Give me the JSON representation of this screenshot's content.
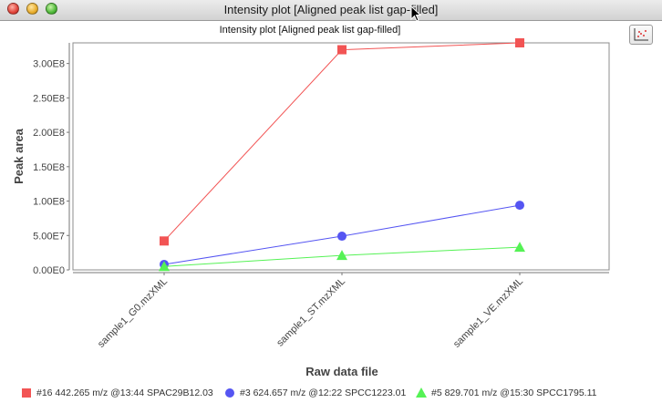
{
  "window": {
    "title": "Intensity plot [Aligned peak list gap-filled]"
  },
  "chart_data": {
    "type": "line",
    "title": "Intensity plot [Aligned peak list gap-filled]",
    "xlabel": "Raw data file",
    "ylabel": "Peak area",
    "categories": [
      "sample1_G0.mzXML",
      "sample1_ST.mzXML",
      "sample1_VE.mzXML"
    ],
    "ylim": [
      0,
      330000000
    ],
    "yticks": [
      0,
      50000000,
      100000000,
      150000000,
      200000000,
      250000000,
      300000000
    ],
    "ytick_labels": [
      "0.00E0",
      "5.00E7",
      "1.00E8",
      "1.50E8",
      "2.00E8",
      "2.50E8",
      "3.00E8"
    ],
    "grid": false,
    "legend_position": "bottom",
    "series": [
      {
        "name": "#16 442.265 m/z @13:44 SPAC29B12.03",
        "color": "#f25454",
        "marker": "square",
        "values": [
          42000000,
          320000000,
          330000000
        ]
      },
      {
        "name": "#3 624.657 m/z @12:22 SPCC1223.01",
        "color": "#5555f2",
        "marker": "circle",
        "values": [
          8000000,
          49000000,
          94000000
        ]
      },
      {
        "name": "#5 829.701 m/z @15:30 SPCC1795.11",
        "color": "#55f255",
        "marker": "triangle",
        "values": [
          5000000,
          21000000,
          33000000
        ]
      }
    ]
  }
}
